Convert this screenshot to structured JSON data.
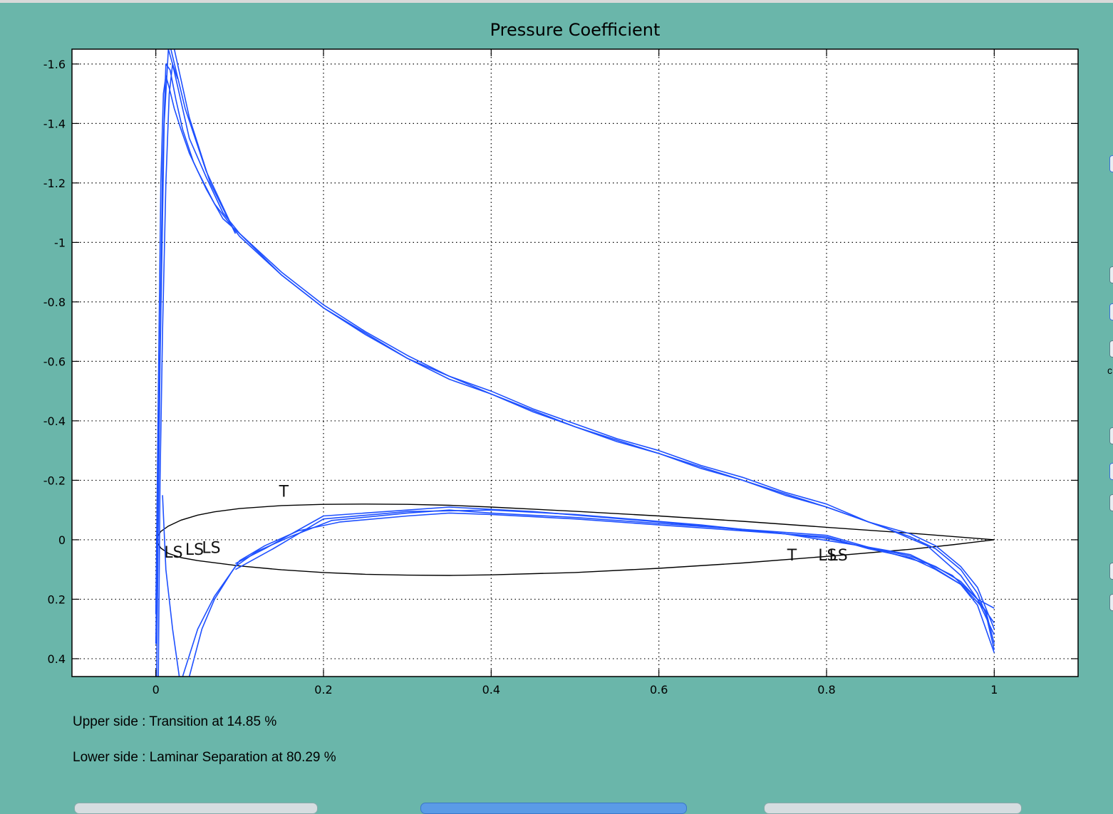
{
  "chart_data": {
    "type": "line",
    "title": "Pressure Coefficient",
    "xlabel": "",
    "ylabel": "",
    "xlim": [
      -0.1,
      1.1
    ],
    "ylim": [
      -1.65,
      0.46
    ],
    "y_inverted": true,
    "grid": true,
    "x_ticks": [
      0,
      0.2,
      0.4,
      0.6,
      0.8,
      1
    ],
    "x_tick_labels": [
      "0",
      "0.2",
      "0.4",
      "0.6",
      "0.8",
      "1"
    ],
    "y_ticks": [
      -1.6,
      -1.4,
      -1.2,
      -1,
      -0.8,
      -0.6,
      -0.4,
      -0.2,
      0,
      0.2,
      0.4
    ],
    "y_tick_labels": [
      "-1.6",
      "-1.4",
      "-1.2",
      "-1",
      "-0.8",
      "-0.6",
      "-0.4",
      "-0.2",
      "0",
      "0.2",
      "0.4"
    ],
    "colors": {
      "cp": "#1e50ff",
      "airfoil": "#000000",
      "grid": "#000000",
      "background": "#ffffff"
    },
    "series": [
      {
        "values": [
          [
            0.0,
            0.25
          ],
          [
            0.003,
            -0.5
          ],
          [
            0.006,
            -1.2
          ],
          [
            0.009,
            -1.5
          ],
          [
            0.012,
            -1.56
          ],
          [
            0.016,
            -1.52
          ],
          [
            0.022,
            -1.45
          ],
          [
            0.03,
            -1.38
          ],
          [
            0.04,
            -1.3
          ],
          [
            0.05,
            -1.24
          ],
          [
            0.07,
            -1.13
          ],
          [
            0.1,
            -1.02
          ],
          [
            0.15,
            -0.89
          ],
          [
            0.2,
            -0.78
          ],
          [
            0.25,
            -0.69
          ],
          [
            0.3,
            -0.61
          ],
          [
            0.35,
            -0.54
          ],
          [
            0.4,
            -0.49
          ],
          [
            0.45,
            -0.43
          ],
          [
            0.5,
            -0.38
          ],
          [
            0.55,
            -0.33
          ],
          [
            0.6,
            -0.29
          ],
          [
            0.65,
            -0.24
          ],
          [
            0.7,
            -0.2
          ],
          [
            0.75,
            -0.15
          ],
          [
            0.8,
            -0.11
          ],
          [
            0.85,
            -0.06
          ],
          [
            0.9,
            -0.01
          ],
          [
            0.93,
            0.03
          ],
          [
            0.96,
            0.1
          ],
          [
            0.98,
            0.18
          ],
          [
            0.99,
            0.25
          ],
          [
            1.0,
            0.37
          ]
        ]
      },
      {
        "values": [
          [
            0.0,
            0.35
          ],
          [
            0.004,
            -0.45
          ],
          [
            0.008,
            -1.25
          ],
          [
            0.012,
            -1.6
          ],
          [
            0.017,
            -1.58
          ],
          [
            0.024,
            -1.48
          ],
          [
            0.032,
            -1.38
          ],
          [
            0.045,
            -1.27
          ],
          [
            0.06,
            -1.18
          ],
          [
            0.08,
            -1.08
          ],
          [
            0.1,
            -1.03
          ],
          [
            0.15,
            -0.9
          ],
          [
            0.2,
            -0.79
          ],
          [
            0.25,
            -0.7
          ],
          [
            0.3,
            -0.62
          ],
          [
            0.35,
            -0.55
          ],
          [
            0.4,
            -0.5
          ],
          [
            0.45,
            -0.44
          ],
          [
            0.5,
            -0.39
          ],
          [
            0.55,
            -0.34
          ],
          [
            0.6,
            -0.3
          ],
          [
            0.65,
            -0.25
          ],
          [
            0.7,
            -0.21
          ],
          [
            0.75,
            -0.16
          ],
          [
            0.8,
            -0.12
          ],
          [
            0.85,
            -0.06
          ],
          [
            0.9,
            -0.02
          ],
          [
            0.93,
            0.02
          ],
          [
            0.96,
            0.09
          ],
          [
            0.98,
            0.16
          ],
          [
            0.99,
            0.23
          ],
          [
            1.0,
            0.3
          ]
        ]
      },
      {
        "values": [
          [
            0.001,
            0.46
          ],
          [
            0.005,
            -0.6
          ],
          [
            0.01,
            -1.4
          ],
          [
            0.015,
            -1.65
          ],
          [
            0.02,
            -1.6
          ],
          [
            0.028,
            -1.5
          ],
          [
            0.04,
            -1.35
          ],
          [
            0.06,
            -1.22
          ],
          [
            0.08,
            -1.1
          ],
          [
            0.1,
            -1.03
          ],
          [
            0.15,
            -0.89
          ],
          [
            0.2,
            -0.78
          ],
          [
            0.3,
            -0.61
          ],
          [
            0.4,
            -0.49
          ],
          [
            0.5,
            -0.38
          ],
          [
            0.6,
            -0.29
          ],
          [
            0.7,
            -0.2
          ],
          [
            0.8,
            -0.11
          ],
          [
            0.87,
            -0.04
          ],
          [
            0.92,
            0.02
          ],
          [
            0.96,
            0.12
          ],
          [
            0.98,
            0.2
          ],
          [
            1.0,
            0.23
          ]
        ]
      },
      {
        "values": [
          [
            0.022,
            -1.65
          ],
          [
            0.04,
            -1.42
          ],
          [
            0.065,
            -1.2
          ],
          [
            0.095,
            -1.03
          ]
        ]
      },
      {
        "values": [
          [
            0.018,
            -1.65
          ],
          [
            0.035,
            -1.45
          ],
          [
            0.06,
            -1.24
          ],
          [
            0.095,
            -1.03
          ]
        ]
      },
      {
        "values": [
          [
            0.003,
            0.46
          ],
          [
            0.005,
            -0.2
          ],
          [
            0.008,
            -0.7
          ],
          [
            0.012,
            -1.2
          ],
          [
            0.016,
            -1.5
          ],
          [
            0.02,
            -1.6
          ],
          [
            0.026,
            -1.55
          ]
        ]
      },
      {
        "values": [
          [
            0.008,
            -0.15
          ],
          [
            0.012,
            0.1
          ],
          [
            0.02,
            0.3
          ],
          [
            0.028,
            0.46
          ]
        ]
      },
      {
        "values": [
          [
            0.04,
            0.46
          ],
          [
            0.055,
            0.3
          ],
          [
            0.07,
            0.2
          ],
          [
            0.09,
            0.11
          ],
          [
            0.1,
            0.07
          ],
          [
            0.13,
            0.02
          ],
          [
            0.17,
            -0.03
          ],
          [
            0.22,
            -0.06
          ],
          [
            0.3,
            -0.08
          ],
          [
            0.35,
            -0.09
          ],
          [
            0.4,
            -0.085
          ],
          [
            0.5,
            -0.07
          ],
          [
            0.6,
            -0.05
          ],
          [
            0.7,
            -0.03
          ],
          [
            0.8,
            -0.01
          ],
          [
            0.85,
            0.03
          ],
          [
            0.9,
            0.06
          ],
          [
            0.93,
            0.1
          ],
          [
            0.96,
            0.15
          ],
          [
            0.98,
            0.22
          ],
          [
            1.0,
            0.38
          ]
        ]
      },
      {
        "values": [
          [
            0.032,
            0.46
          ],
          [
            0.05,
            0.3
          ],
          [
            0.07,
            0.19
          ],
          [
            0.095,
            0.09
          ],
          [
            0.12,
            0.04
          ],
          [
            0.16,
            -0.01
          ],
          [
            0.21,
            -0.065
          ],
          [
            0.3,
            -0.09
          ],
          [
            0.35,
            -0.1
          ],
          [
            0.4,
            -0.09
          ],
          [
            0.5,
            -0.075
          ],
          [
            0.6,
            -0.055
          ],
          [
            0.7,
            -0.035
          ],
          [
            0.8,
            -0.015
          ],
          [
            0.85,
            0.025
          ],
          [
            0.9,
            0.055
          ],
          [
            0.93,
            0.09
          ],
          [
            0.96,
            0.14
          ],
          [
            0.98,
            0.2
          ],
          [
            1.0,
            0.32
          ]
        ]
      },
      {
        "values": [
          [
            0.095,
            0.08
          ],
          [
            0.13,
            0.03
          ],
          [
            0.2,
            -0.08
          ],
          [
            0.3,
            -0.1
          ],
          [
            0.35,
            -0.11
          ],
          [
            0.45,
            -0.095
          ],
          [
            0.6,
            -0.06
          ],
          [
            0.75,
            -0.02
          ],
          [
            0.84,
            0.02
          ],
          [
            0.9,
            0.05
          ],
          [
            0.95,
            0.12
          ],
          [
            0.98,
            0.2
          ],
          [
            1.0,
            0.28
          ]
        ]
      },
      {
        "values": [
          [
            0.095,
            0.1
          ],
          [
            0.14,
            0.03
          ],
          [
            0.2,
            -0.07
          ],
          [
            0.3,
            -0.095
          ],
          [
            0.4,
            -0.1
          ],
          [
            0.5,
            -0.085
          ],
          [
            0.65,
            -0.05
          ],
          [
            0.8,
            -0.005
          ],
          [
            0.87,
            0.04
          ],
          [
            0.92,
            0.08
          ],
          [
            0.96,
            0.15
          ],
          [
            0.99,
            0.24
          ],
          [
            1.0,
            0.35
          ]
        ]
      }
    ],
    "airfoil": {
      "upper": [
        [
          1.0,
          0.0
        ],
        [
          0.95,
          -0.011
        ],
        [
          0.9,
          -0.022
        ],
        [
          0.8,
          -0.042
        ],
        [
          0.7,
          -0.062
        ],
        [
          0.6,
          -0.08
        ],
        [
          0.5,
          -0.096
        ],
        [
          0.4,
          -0.11
        ],
        [
          0.35,
          -0.116
        ],
        [
          0.3,
          -0.119
        ],
        [
          0.25,
          -0.12
        ],
        [
          0.2,
          -0.119
        ],
        [
          0.15,
          -0.115
        ],
        [
          0.1,
          -0.105
        ],
        [
          0.07,
          -0.094
        ],
        [
          0.05,
          -0.083
        ],
        [
          0.03,
          -0.066
        ],
        [
          0.015,
          -0.046
        ],
        [
          0.006,
          -0.028
        ],
        [
          0.0,
          0.0
        ]
      ],
      "lower": [
        [
          0.0,
          0.0
        ],
        [
          0.006,
          0.028
        ],
        [
          0.015,
          0.046
        ],
        [
          0.03,
          0.06
        ],
        [
          0.05,
          0.07
        ],
        [
          0.1,
          0.088
        ],
        [
          0.15,
          0.101
        ],
        [
          0.2,
          0.11
        ],
        [
          0.25,
          0.116
        ],
        [
          0.3,
          0.119
        ],
        [
          0.35,
          0.12
        ],
        [
          0.4,
          0.118
        ],
        [
          0.5,
          0.11
        ],
        [
          0.6,
          0.096
        ],
        [
          0.7,
          0.078
        ],
        [
          0.8,
          0.056
        ],
        [
          0.9,
          0.032
        ],
        [
          0.95,
          0.017
        ],
        [
          1.0,
          0.0
        ]
      ]
    },
    "annotations": [
      {
        "text": "LS",
        "x": 0.01,
        "y": 0.06
      },
      {
        "text": "LS",
        "x": 0.035,
        "y": 0.05
      },
      {
        "text": "LS",
        "x": 0.055,
        "y": 0.045
      },
      {
        "text": "T",
        "x": 0.147,
        "y": -0.145
      },
      {
        "text": "T",
        "x": 0.753,
        "y": 0.07
      },
      {
        "text": "LS",
        "x": 0.79,
        "y": 0.07
      },
      {
        "text": "LS",
        "x": 0.803,
        "y": 0.07
      }
    ]
  },
  "status": {
    "upper": "Upper side : Transition at 14.85 %",
    "lower": "Lower side : Laminar Separation at 80.29 %"
  },
  "edge_text": "c"
}
